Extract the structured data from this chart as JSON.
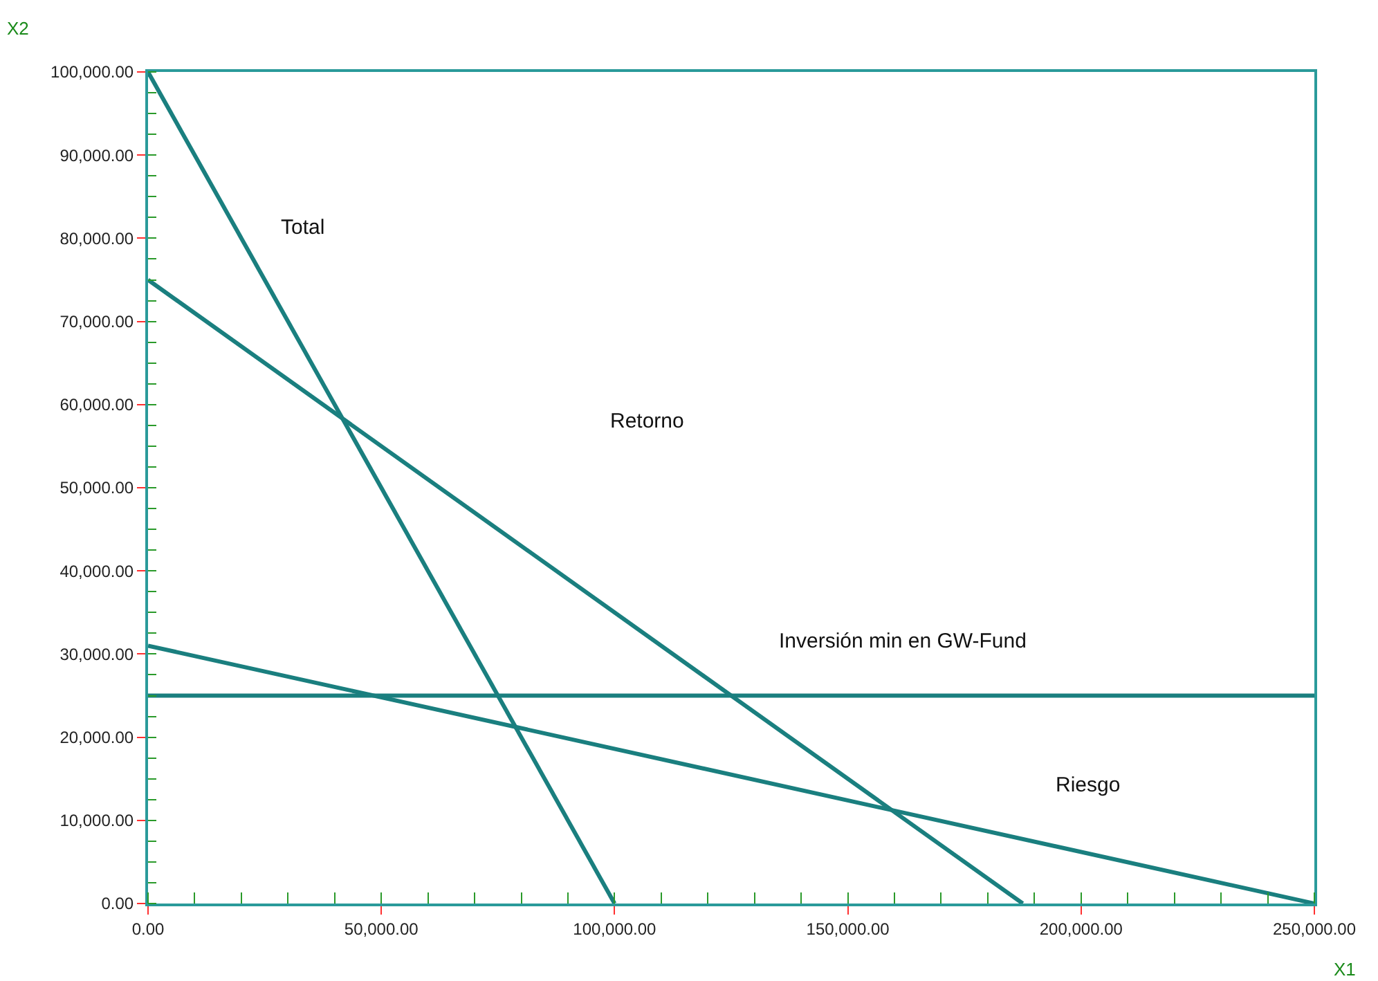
{
  "chart_data": {
    "type": "line",
    "xlabel": "X1",
    "ylabel": "X2",
    "series": [
      {
        "x": [
          0,
          100000
        ],
        "values": [
          100000,
          0
        ],
        "color": "#1a7f7f"
      },
      {
        "x": [
          0,
          187500
        ],
        "values": [
          75000,
          0
        ],
        "color": "#1a7f7f"
      },
      {
        "x": [
          0,
          250000
        ],
        "values": [
          31000,
          0
        ],
        "color": "#1a7f7f"
      },
      {
        "x": [
          0,
          250000
        ],
        "values": [
          25000,
          25000
        ],
        "color": "#1a7f7f"
      }
    ],
    "xlim": [
      0,
      250000
    ],
    "ylim": [
      0,
      100000
    ],
    "xticks": [
      {
        "value": 0,
        "label": "0.00"
      },
      {
        "value": 50000,
        "label": "50,000.00"
      },
      {
        "value": 100000,
        "label": "100,000.00"
      },
      {
        "value": 150000,
        "label": "150,000.00"
      },
      {
        "value": 200000,
        "label": "200,000.00"
      },
      {
        "value": 250000,
        "label": "250,000.00"
      }
    ],
    "yticks": [
      {
        "value": 0,
        "label": "0.00"
      },
      {
        "value": 10000,
        "label": "10,000.00"
      },
      {
        "value": 20000,
        "label": "20,000.00"
      },
      {
        "value": 30000,
        "label": "30,000.00"
      },
      {
        "value": 40000,
        "label": "40,000.00"
      },
      {
        "value": 50000,
        "label": "50,000.00"
      },
      {
        "value": 60000,
        "label": "60,000.00"
      },
      {
        "value": 70000,
        "label": "70,000.00"
      },
      {
        "value": 80000,
        "label": "80,000.00"
      },
      {
        "value": 90000,
        "label": "90,000.00"
      },
      {
        "value": 100000,
        "label": "100,000.00"
      }
    ],
    "annotations": [
      "Total",
      "Retorno",
      "Inversión min en GW-Fund",
      "Riesgo"
    ],
    "marker": "none",
    "line_style": "solid"
  }
}
